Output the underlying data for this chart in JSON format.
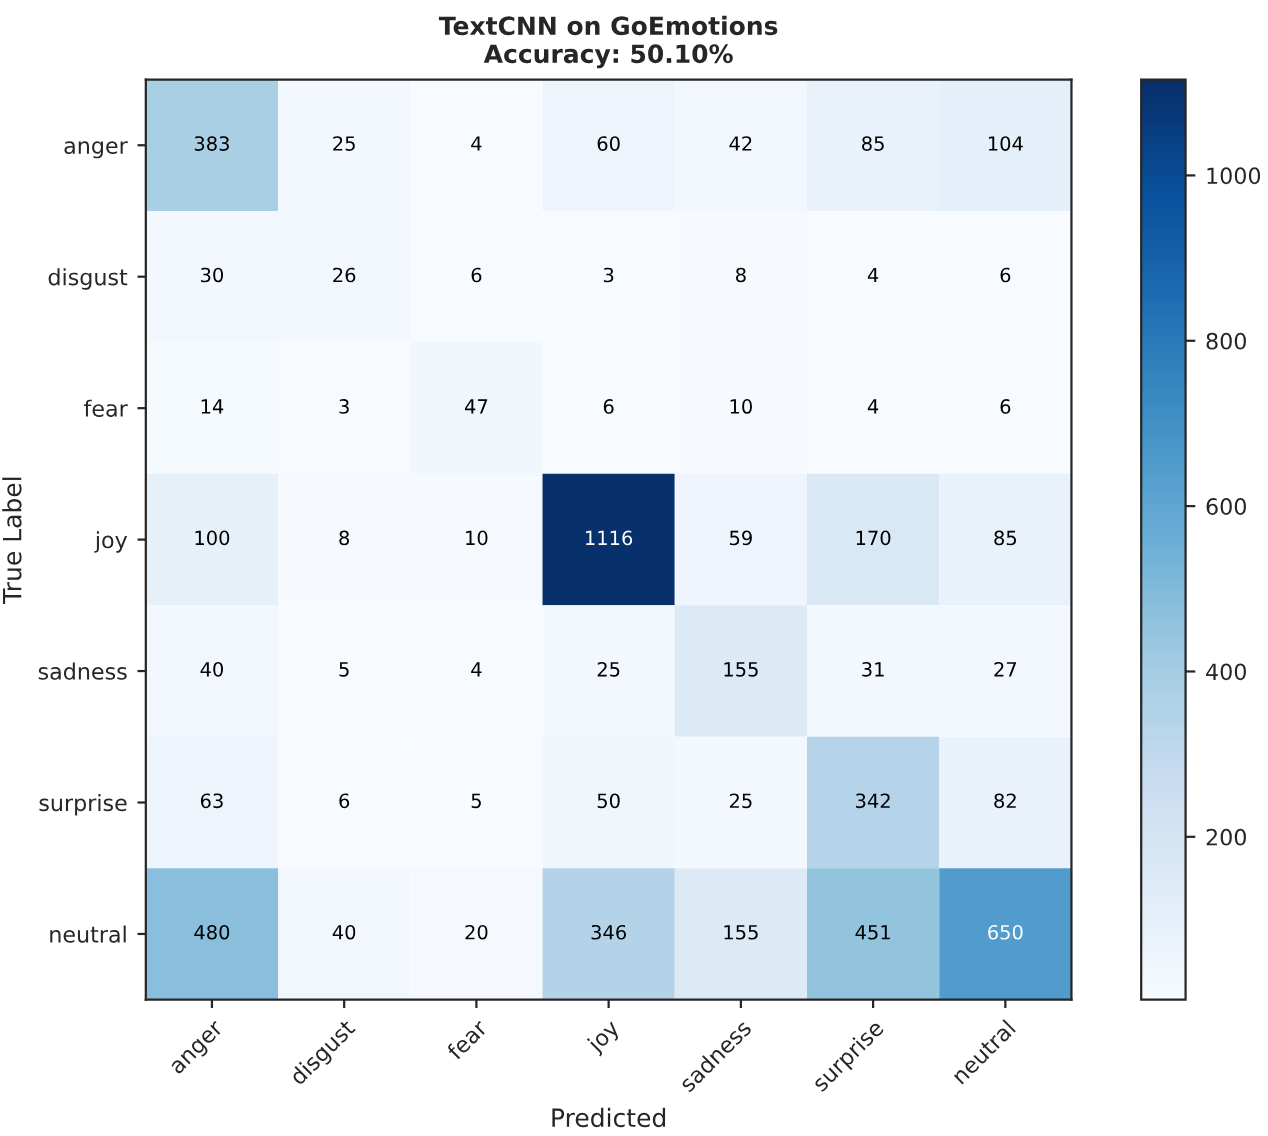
{
  "chart_data": {
    "type": "heatmap",
    "title": "TextCNN on GoEmotions\nAccuracy: 50.10%",
    "xlabel": "Predicted",
    "ylabel": "True Label",
    "categories": [
      "anger",
      "disgust",
      "fear",
      "joy",
      "sadness",
      "surprise",
      "neutral"
    ],
    "y_categories": [
      "anger",
      "disgust",
      "fear",
      "joy",
      "sadness",
      "surprise",
      "neutral"
    ],
    "cells": [
      [
        383,
        25,
        4,
        60,
        42,
        85,
        104
      ],
      [
        30,
        26,
        6,
        3,
        8,
        4,
        6
      ],
      [
        14,
        3,
        47,
        6,
        10,
        4,
        6
      ],
      [
        100,
        8,
        10,
        1116,
        59,
        170,
        85
      ],
      [
        40,
        5,
        4,
        25,
        155,
        31,
        27
      ],
      [
        63,
        6,
        5,
        50,
        25,
        342,
        82
      ],
      [
        480,
        40,
        20,
        346,
        155,
        451,
        650
      ]
    ],
    "clim": [
      3,
      1116
    ],
    "cticks": [
      200,
      400,
      600,
      800,
      1000
    ],
    "data_labels": true
  }
}
